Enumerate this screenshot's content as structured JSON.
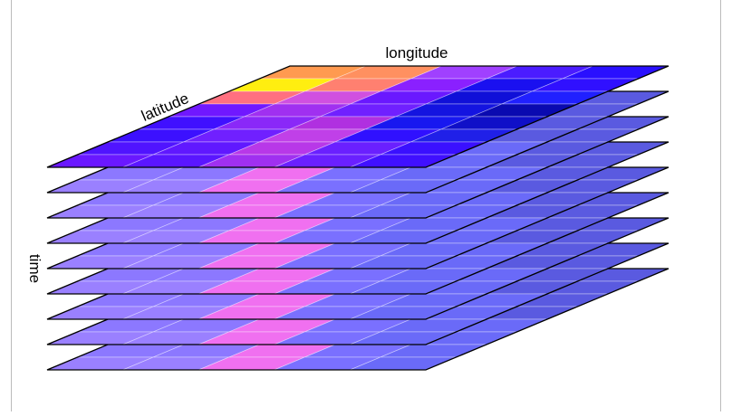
{
  "labels": {
    "longitude": "longitude",
    "latitude": "latitude",
    "time": "time"
  }
}
